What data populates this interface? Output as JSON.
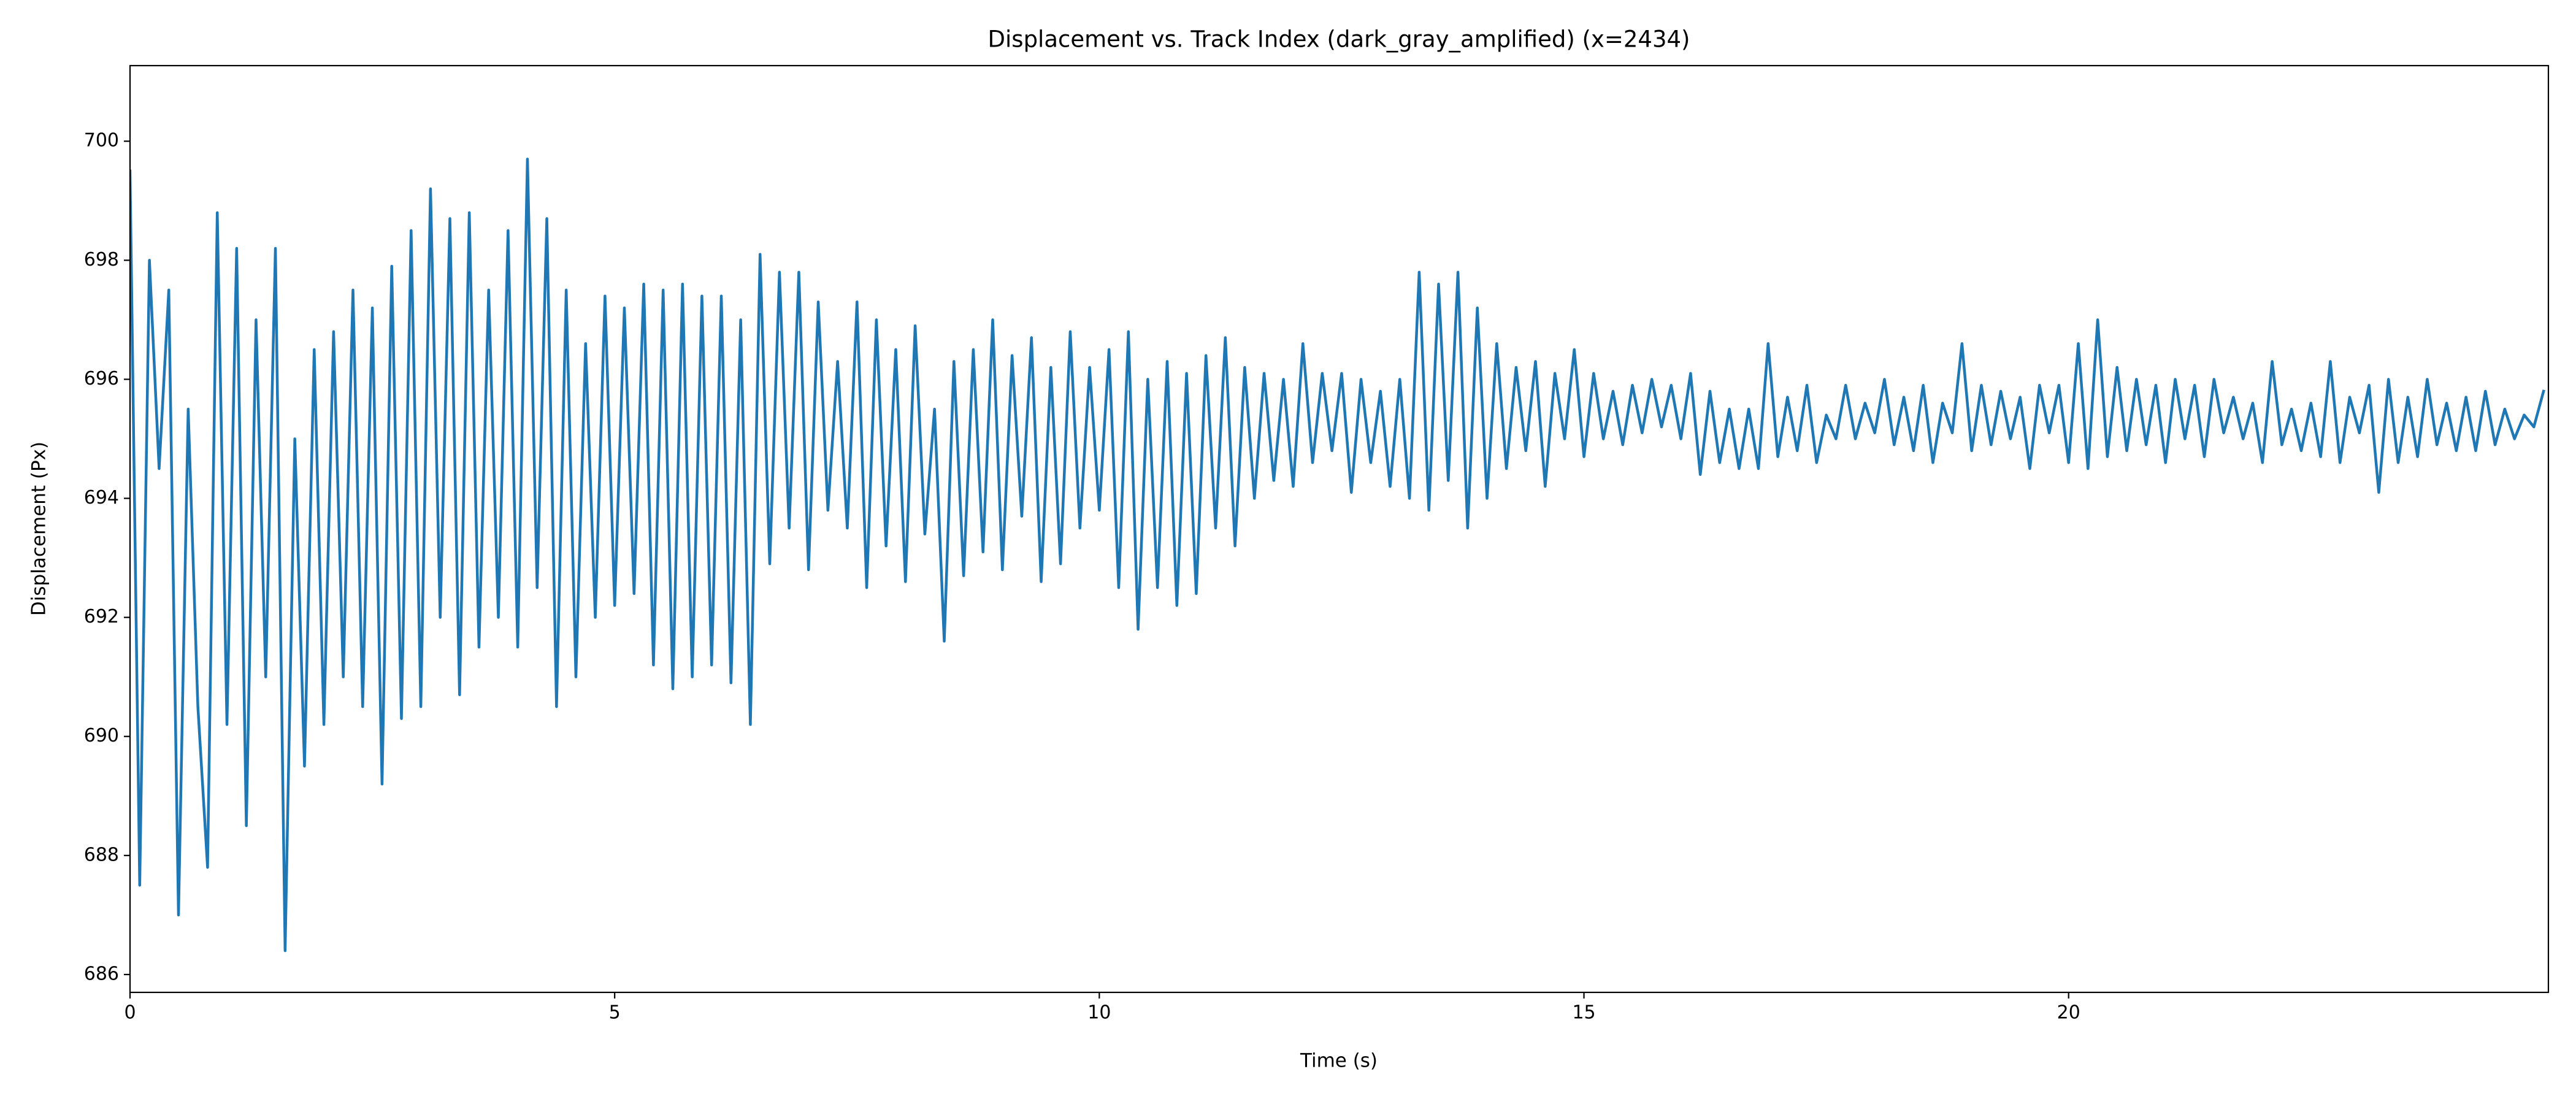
{
  "chart_data": {
    "type": "line",
    "title": "Displacement vs. Track Index (dark_gray_amplified) (x=2434)",
    "x_label": "Time (s)",
    "y_label": "Displacement (Px)",
    "xlim": [
      0,
      24.95
    ],
    "ylim": [
      685.7,
      701.27
    ],
    "xticks": [
      0,
      5,
      10,
      15,
      20
    ],
    "yticks": [
      686,
      688,
      690,
      692,
      694,
      696,
      698,
      700
    ],
    "grid": false,
    "x": [
      0,
      0.1,
      0.2,
      0.3,
      0.4,
      0.5,
      0.6,
      0.7,
      0.8,
      0.9,
      1,
      1.1,
      1.2,
      1.3,
      1.4,
      1.5,
      1.6,
      1.7,
      1.8,
      1.9,
      2,
      2.1,
      2.2,
      2.3,
      2.4,
      2.5,
      2.6,
      2.7,
      2.8,
      2.9,
      3,
      3.1,
      3.2,
      3.3,
      3.4,
      3.5,
      3.6,
      3.7,
      3.8,
      3.9,
      4,
      4.1,
      4.2,
      4.3,
      4.4,
      4.5,
      4.6,
      4.7,
      4.8,
      4.9,
      5,
      5.1,
      5.2,
      5.3,
      5.4,
      5.5,
      5.6,
      5.7,
      5.8,
      5.9,
      6,
      6.1,
      6.2,
      6.3,
      6.4,
      6.5,
      6.6,
      6.7,
      6.8,
      6.9,
      7,
      7.1,
      7.2,
      7.3,
      7.4,
      7.5,
      7.6,
      7.7,
      7.8,
      7.9,
      8,
      8.1,
      8.2,
      8.3,
      8.4,
      8.5,
      8.6,
      8.7,
      8.8,
      8.9,
      9,
      9.1,
      9.2,
      9.3,
      9.4,
      9.5,
      9.6,
      9.7,
      9.8,
      9.9,
      10,
      10.1,
      10.2,
      10.3,
      10.4,
      10.5,
      10.6,
      10.7,
      10.8,
      10.9,
      11,
      11.1,
      11.2,
      11.3,
      11.4,
      11.5,
      11.6,
      11.7,
      11.8,
      11.9,
      12,
      12.1,
      12.2,
      12.3,
      12.4,
      12.5,
      12.6,
      12.7,
      12.8,
      12.9,
      13,
      13.1,
      13.2,
      13.3,
      13.4,
      13.5,
      13.6,
      13.7,
      13.8,
      13.9,
      14,
      14.1,
      14.2,
      14.3,
      14.4,
      14.5,
      14.6,
      14.7,
      14.8,
      14.9,
      15,
      15.1,
      15.2,
      15.3,
      15.4,
      15.5,
      15.6,
      15.7,
      15.8,
      15.9,
      16,
      16.1,
      16.2,
      16.3,
      16.4,
      16.5,
      16.6,
      16.7,
      16.8,
      16.9,
      17,
      17.1,
      17.2,
      17.3,
      17.4,
      17.5,
      17.6,
      17.7,
      17.8,
      17.9,
      18,
      18.1,
      18.2,
      18.3,
      18.4,
      18.5,
      18.6,
      18.7,
      18.8,
      18.9,
      19,
      19.1,
      19.2,
      19.3,
      19.4,
      19.5,
      19.6,
      19.7,
      19.8,
      19.9,
      20,
      20.1,
      20.2,
      20.3,
      20.4,
      20.5,
      20.6,
      20.7,
      20.8,
      20.9,
      21,
      21.1,
      21.2,
      21.3,
      21.4,
      21.5,
      21.6,
      21.7,
      21.8,
      21.9,
      22,
      22.1,
      22.2,
      22.3,
      22.4,
      22.5,
      22.6,
      22.7,
      22.8,
      22.9,
      23,
      23.1,
      23.2,
      23.3,
      23.4,
      23.5,
      23.6,
      23.7,
      23.8,
      23.9,
      24,
      24.1,
      24.2,
      24.3,
      24.4,
      24.5,
      24.6,
      24.7,
      24.8,
      24.9
    ],
    "series": [
      {
        "color": "#1f77b4",
        "values": [
          699.5,
          687.5,
          698,
          694.5,
          697.5,
          687,
          695.5,
          690.5,
          687.8,
          698.8,
          690.2,
          698.2,
          688.5,
          697,
          691,
          698.2,
          686.4,
          695,
          689.5,
          696.5,
          690.2,
          696.8,
          691,
          697.5,
          690.5,
          697.2,
          689.2,
          697.9,
          690.3,
          698.5,
          690.5,
          699.2,
          692,
          698.7,
          690.7,
          698.8,
          691.5,
          697.5,
          692,
          698.5,
          691.5,
          699.7,
          692.5,
          698.7,
          690.5,
          697.5,
          691,
          696.6,
          692,
          697.4,
          692.2,
          697.2,
          692.4,
          697.6,
          691.2,
          697.5,
          690.8,
          697.6,
          691,
          697.4,
          691.2,
          697.4,
          690.9,
          697,
          690.2,
          698.1,
          692.9,
          697.8,
          693.5,
          697.8,
          692.8,
          697.3,
          693.8,
          696.3,
          693.5,
          697.3,
          692.5,
          697,
          693.2,
          696.5,
          692.6,
          696.9,
          693.4,
          695.5,
          691.6,
          696.3,
          692.7,
          696.5,
          693.1,
          697,
          692.8,
          696.4,
          693.7,
          696.7,
          692.6,
          696.2,
          692.9,
          696.8,
          693.5,
          696.2,
          693.8,
          696.5,
          692.5,
          696.8,
          691.8,
          696,
          692.5,
          696.3,
          692.2,
          696.1,
          692.4,
          696.4,
          693.5,
          696.7,
          693.2,
          696.2,
          694,
          696.1,
          694.3,
          696,
          694.2,
          696.6,
          694.6,
          696.1,
          694.8,
          696.1,
          694.1,
          696,
          694.6,
          695.8,
          694.2,
          696,
          694,
          697.8,
          693.8,
          697.6,
          694.3,
          697.8,
          693.5,
          697.2,
          694,
          696.6,
          694.5,
          696.2,
          694.8,
          696.3,
          694.2,
          696.1,
          695,
          696.5,
          694.7,
          696.1,
          695,
          695.8,
          694.9,
          695.9,
          695.1,
          696,
          695.2,
          695.9,
          695,
          696.1,
          694.4,
          695.8,
          694.6,
          695.5,
          694.5,
          695.5,
          694.5,
          696.6,
          694.7,
          695.7,
          694.8,
          695.9,
          694.6,
          695.4,
          695,
          695.9,
          695,
          695.6,
          695.1,
          696,
          694.9,
          695.7,
          694.8,
          695.9,
          694.6,
          695.6,
          695.1,
          696.6,
          694.8,
          695.9,
          694.9,
          695.8,
          695,
          695.7,
          694.5,
          695.9,
          695.1,
          695.9,
          694.6,
          696.6,
          694.5,
          697,
          694.7,
          696.2,
          694.8,
          696,
          694.9,
          695.9,
          694.6,
          696,
          695,
          695.9,
          694.7,
          696,
          695.1,
          695.7,
          695,
          695.6,
          694.6,
          696.3,
          694.9,
          695.5,
          694.8,
          695.6,
          694.7,
          696.3,
          694.6,
          695.7,
          695.1,
          695.9,
          694.1,
          696,
          694.6,
          695.7,
          694.7,
          696,
          694.9,
          695.6,
          694.8,
          695.7,
          694.8,
          695.8,
          694.9,
          695.5,
          695,
          695.4,
          695.2,
          695.8
        ]
      }
    ]
  }
}
